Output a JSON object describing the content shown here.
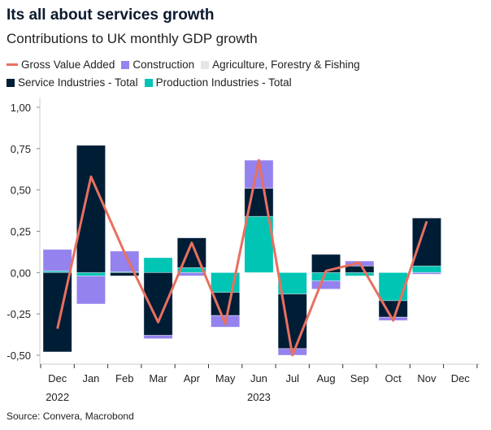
{
  "title": "Its all about services growth",
  "subtitle": "Contributions to UK monthly GDP growth",
  "source": "Source: Convera, Macrobond",
  "legend": [
    {
      "name": "Gross Value Added",
      "color": "#e8705f",
      "kind": "line"
    },
    {
      "name": "Construction",
      "color": "#9482ee",
      "kind": "bar"
    },
    {
      "name": "Agriculture, Forestry & Fishing",
      "color": "#e6e6e6",
      "kind": "bar"
    },
    {
      "name": "Service Industries - Total",
      "color": "#001d36",
      "kind": "bar"
    },
    {
      "name": "Production Industries - Total",
      "color": "#00c4b4",
      "kind": "bar"
    }
  ],
  "chart_data": {
    "type": "bar",
    "stacked": true,
    "categories": [
      "Dec",
      "Jan",
      "Feb",
      "Mar",
      "Apr",
      "May",
      "Jun",
      "Jul",
      "Aug",
      "Sep",
      "Oct",
      "Nov",
      "Dec"
    ],
    "year_labels": [
      {
        "label": "2022",
        "under": "Dec"
      },
      {
        "label": "2023",
        "under": "Jun"
      }
    ],
    "ylim": [
      -0.5,
      1.0
    ],
    "yticks": [
      "1,00",
      "0,75",
      "0,50",
      "0,25",
      "0,00",
      "-0,25",
      "-0,50"
    ],
    "ytick_values": [
      1.0,
      0.75,
      0.5,
      0.25,
      0,
      -0.25,
      -0.5
    ],
    "grid": false,
    "legend_placement": "top",
    "series": [
      {
        "name": "Production Industries - Total",
        "values": [
          0.01,
          -0.02,
          0.005,
          0.09,
          0.03,
          -0.12,
          0.34,
          -0.13,
          -0.05,
          -0.02,
          -0.17,
          0.04,
          null
        ]
      },
      {
        "name": "Service Industries - Total",
        "values": [
          -0.48,
          0.77,
          -0.02,
          -0.38,
          0.18,
          -0.14,
          0.17,
          -0.33,
          0.11,
          0.04,
          -0.1,
          0.29,
          null
        ]
      },
      {
        "name": "Agriculture, Forestry & Fishing",
        "values": [
          0,
          0,
          0,
          0,
          0,
          0,
          0,
          0,
          0,
          0,
          0,
          0,
          null
        ]
      },
      {
        "name": "Construction",
        "values": [
          0.13,
          -0.17,
          0.125,
          -0.02,
          -0.02,
          -0.07,
          0.17,
          -0.04,
          -0.05,
          0.03,
          -0.02,
          -0.01,
          null
        ]
      }
    ],
    "line": {
      "name": "Gross Value Added",
      "values": [
        -0.34,
        0.58,
        0.12,
        -0.3,
        0.18,
        -0.31,
        0.68,
        -0.5,
        0.01,
        0.06,
        -0.29,
        0.31,
        null
      ]
    }
  }
}
